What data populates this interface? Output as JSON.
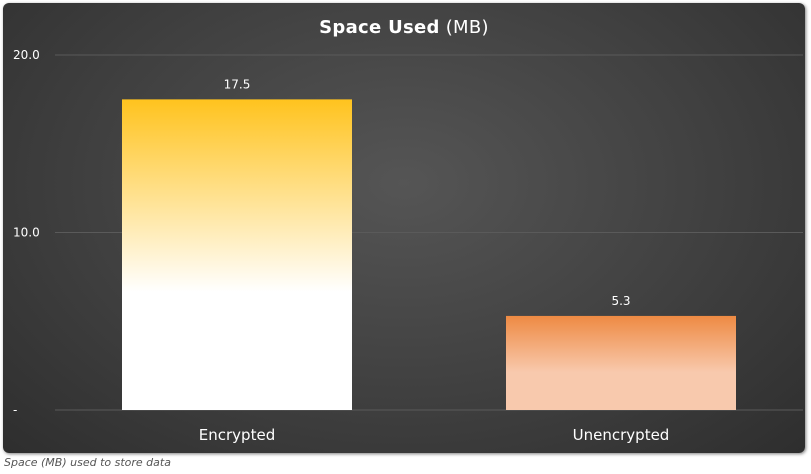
{
  "chart_data": {
    "type": "bar",
    "title": "Space Used",
    "title_unit": "(MB)",
    "categories": [
      "Encrypted",
      "Unencrypted"
    ],
    "values": [
      17.5,
      5.3
    ],
    "value_labels": [
      "17.5",
      "5.3"
    ],
    "ylim": [
      0,
      20
    ],
    "yticks": [
      0,
      10,
      20
    ],
    "ytick_labels": [
      "-",
      "10.0",
      "20.0"
    ],
    "grid": true,
    "legend": "none",
    "bar_colors": [
      {
        "top": "#ffc31e",
        "bottom": "#ffffff"
      },
      {
        "top": "#ee8a43",
        "bottom": "#f8c9ad"
      }
    ]
  },
  "caption": "Space (MB) used to store data",
  "colors": {
    "background": "#404040",
    "gridline": "#5a5a5a",
    "axis_text": "#ffffff"
  }
}
